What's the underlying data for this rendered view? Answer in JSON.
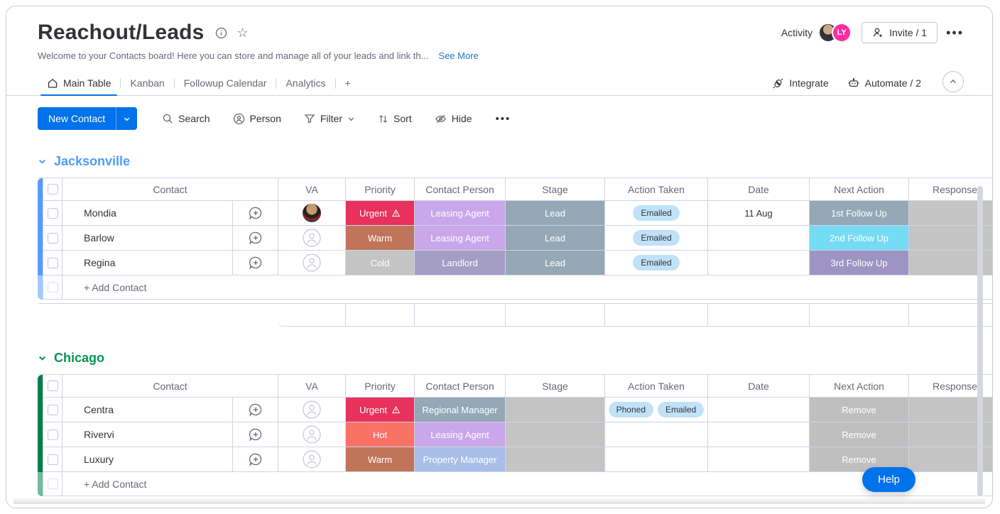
{
  "header": {
    "title": "Reachout/Leads",
    "description": "Welcome to your Contacts board! Here you can store and manage all of your leads and link th...",
    "see_more": "See More",
    "activity_label": "Activity",
    "avatar_initials": "LY",
    "invite_label": "Invite / 1",
    "menu_glyph": "•••"
  },
  "tabs": {
    "items": [
      {
        "label": "Main Table",
        "active": true
      },
      {
        "label": "Kanban",
        "active": false
      },
      {
        "label": "Followup Calendar",
        "active": false
      },
      {
        "label": "Analytics",
        "active": false
      },
      {
        "label": "+",
        "active": false
      }
    ],
    "integrate_label": "Integrate",
    "automate_label": "Automate / 2"
  },
  "toolbar": {
    "new_contact_label": "New Contact",
    "search_label": "Search",
    "person_label": "Person",
    "filter_label": "Filter",
    "sort_label": "Sort",
    "hide_label": "Hide",
    "more_glyph": "•••"
  },
  "columns": [
    "Contact",
    "VA",
    "Priority",
    "Contact Person",
    "Stage",
    "Action Taken",
    "Date",
    "Next Action",
    "Response"
  ],
  "palette": {
    "accent_blue": "#0073ea",
    "urgent_red": "#e8315c",
    "hot_coral": "#fa7166",
    "warm_brown": "#c0755a",
    "cold_gray": "#c4c4c4",
    "leasing_purple": "#c9a7ea",
    "landlord_purple": "#a49ec4",
    "grayblue": "#94a8b6",
    "periwinkle": "#a9bee8",
    "cyan": "#76dbf4",
    "follow_purple": "#9d94c4",
    "remove_gray": "#bfbfbf",
    "empty_gray": "#c4c4c4",
    "pill_blue": "#c0e2f8",
    "avatar_pink": "#ff2da0"
  },
  "groups": [
    {
      "name": "Jacksonville",
      "color": "#579bfc",
      "title_color": "#4e9cfd",
      "add_label": "+ Add Contact",
      "summary_row": true,
      "rows": [
        {
          "contact": "Mondia",
          "va": "photo",
          "priority": {
            "label": "Urgent",
            "warning": true,
            "bg": "#e8315c"
          },
          "person": {
            "label": "Leasing Agent",
            "bg": "#c9a7ea"
          },
          "stage": {
            "label": "Lead",
            "bg": "#94a8b6"
          },
          "actions": [
            "Emailed"
          ],
          "date": "11 Aug",
          "next": {
            "label": "1st Follow Up",
            "bg": "#94a8b6"
          },
          "response_bg": "#c4c4c4"
        },
        {
          "contact": "Barlow",
          "va": "empty",
          "priority": {
            "label": "Warm",
            "warning": false,
            "bg": "#c0755a"
          },
          "person": {
            "label": "Leasing Agent",
            "bg": "#c9a7ea"
          },
          "stage": {
            "label": "Lead",
            "bg": "#94a8b6"
          },
          "actions": [
            "Emailed"
          ],
          "date": "",
          "next": {
            "label": "2nd Follow Up",
            "bg": "#76dbf4"
          },
          "response_bg": "#c4c4c4"
        },
        {
          "contact": "Regina",
          "va": "empty",
          "priority": {
            "label": "Cold",
            "warning": false,
            "bg": "#c4c4c4"
          },
          "person": {
            "label": "Landlord",
            "bg": "#a49ec4"
          },
          "stage": {
            "label": "Lead",
            "bg": "#94a8b6"
          },
          "actions": [
            "Emailed"
          ],
          "date": "",
          "next": {
            "label": "3rd Follow Up",
            "bg": "#9d94c4"
          },
          "response_bg": "#c4c4c4"
        }
      ]
    },
    {
      "name": "Chicago",
      "color": "#037f4c",
      "title_color": "#089355",
      "add_label": "+ Add Contact",
      "summary_row": false,
      "rows": [
        {
          "contact": "Centra",
          "va": "empty",
          "priority": {
            "label": "Urgent",
            "warning": true,
            "bg": "#e8315c"
          },
          "person": {
            "label": "Regional Manager",
            "bg": "#94a8b6"
          },
          "stage": {
            "label": "",
            "bg": "#c4c4c4"
          },
          "actions": [
            "Phoned",
            "Emailed"
          ],
          "date": "",
          "next": {
            "label": "Remove",
            "bg": "#bfbfbf"
          },
          "response_bg": "#c4c4c4"
        },
        {
          "contact": "Rivervi",
          "va": "empty",
          "priority": {
            "label": "Hot",
            "warning": false,
            "bg": "#fa7166"
          },
          "person": {
            "label": "Leasing Agent",
            "bg": "#c9a7ea"
          },
          "stage": {
            "label": "",
            "bg": "#c4c4c4"
          },
          "actions": [],
          "date": "",
          "next": {
            "label": "Remove",
            "bg": "#bfbfbf"
          },
          "response_bg": "#c4c4c4"
        },
        {
          "contact": "Luxury",
          "va": "empty",
          "priority": {
            "label": "Warm",
            "warning": false,
            "bg": "#c0755a"
          },
          "person": {
            "label": "Property Manager",
            "bg": "#a9bee8"
          },
          "stage": {
            "label": "",
            "bg": "#c4c4c4"
          },
          "actions": [],
          "date": "",
          "next": {
            "label": "Remove",
            "bg": "#bfbfbf"
          },
          "response_bg": "#c4c4c4"
        }
      ]
    }
  ],
  "help_label": "Help",
  "icons": {
    "star_glyph": "☆",
    "filter_chevron": "⌄"
  }
}
